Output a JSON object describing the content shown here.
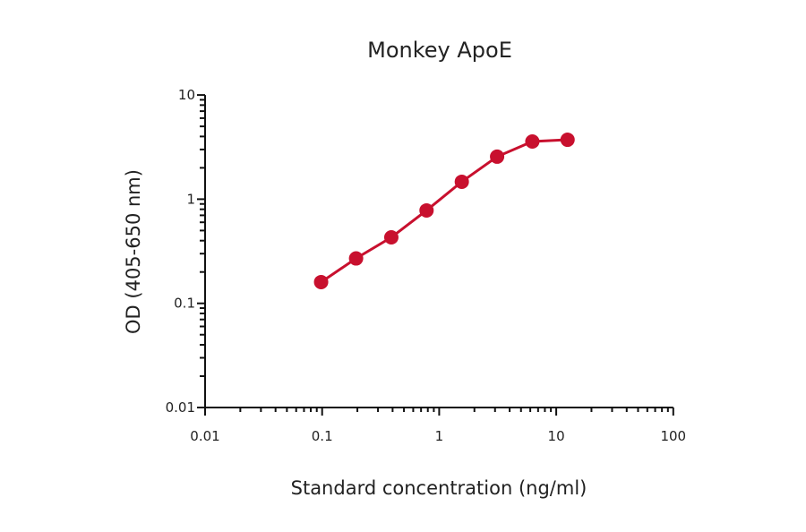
{
  "chart_data": {
    "type": "line",
    "title": "Monkey ApoE",
    "xlabel": "Standard concentration (ng/ml)",
    "ylabel": "OD (405-650 nm)",
    "xscale": "log",
    "yscale": "log",
    "xlim": [
      0.01,
      100
    ],
    "ylim": [
      0.01,
      10
    ],
    "x_ticks": [
      "0.01",
      "0.1",
      "1",
      "10",
      "100"
    ],
    "y_ticks": [
      "0.01",
      "0.1",
      "1",
      "10"
    ],
    "grid": false,
    "legend": null,
    "series": [
      {
        "name": "Monkey ApoE",
        "color": "#c8102e",
        "marker": "circle",
        "x": [
          0.098,
          0.195,
          0.39,
          0.78,
          1.56,
          3.125,
          6.25,
          12.5
        ],
        "y": [
          0.16,
          0.27,
          0.43,
          0.78,
          1.47,
          2.56,
          3.58,
          3.72
        ]
      }
    ]
  }
}
